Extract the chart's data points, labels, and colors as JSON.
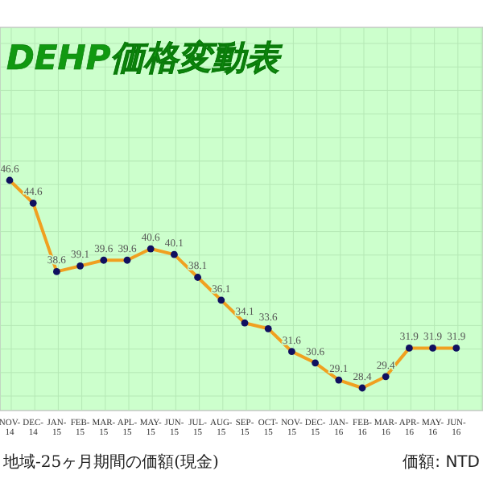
{
  "chart_data": {
    "type": "line",
    "title": "DEHP価格変動表",
    "categories": [
      "NOV-14",
      "DEC-14",
      "JAN-15",
      "FEB-15",
      "MAR-15",
      "APL-15",
      "MAY-15",
      "JUN-15",
      "JUL-15",
      "AUG-15",
      "SEP-15",
      "OCT-15",
      "NOV-15",
      "DEC-15",
      "JAN-16",
      "FEB-16",
      "MAR-16",
      "APR-16",
      "MAY-16",
      "JUN-16"
    ],
    "series": [
      {
        "color": "#f0a020",
        "values": [
          46.6,
          44.6,
          38.6,
          39.1,
          39.6,
          39.6,
          40.6,
          40.1,
          38.1,
          36.1,
          34.1,
          33.6,
          31.6,
          30.6,
          29.1,
          28.4,
          29.4,
          31.9,
          31.9,
          31.9
        ]
      }
    ],
    "data_labels": true,
    "marker": "circle",
    "line_style": "solid",
    "grid": true,
    "annotations": [
      "地域-25ヶ月期間の価額(現金)",
      "価額: NTD"
    ]
  }
}
